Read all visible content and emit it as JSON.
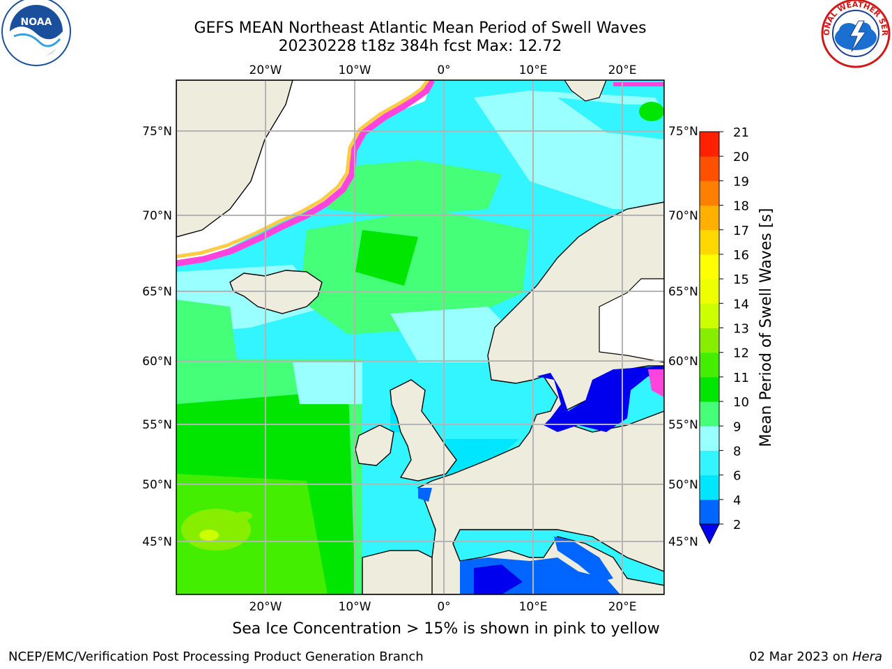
{
  "header": {
    "title_line1": "GEFS MEAN Northeast Atlantic Mean Period of Swell Waves",
    "title_line2": "20230228 t18z 384h fcst   Max: 12.72"
  },
  "logos": {
    "left": {
      "icon": "noaa-logo-icon",
      "text": "NOAA"
    },
    "right": {
      "icon": "national-weather-service-logo-icon",
      "text": "NATIONAL WEATHER SERVICE"
    }
  },
  "map": {
    "projection": "lat-lon",
    "lon_ticks_top": [
      "20°W",
      "10°W",
      "0°",
      "10°E",
      "20°E"
    ],
    "lon_ticks_bottom": [
      "20°W",
      "10°W",
      "0°",
      "10°E",
      "20°E"
    ],
    "lat_ticks_left": [
      "75°N",
      "70°N",
      "65°N",
      "60°N",
      "55°N",
      "50°N",
      "45°N"
    ],
    "lat_ticks_right": [
      "75°N",
      "70°N",
      "65°N",
      "60°N",
      "55°N",
      "50°N",
      "45°N"
    ],
    "land_color": "#eeecdc",
    "grid_color": "#b4b4b4"
  },
  "colorbar": {
    "label": "Mean Period of Swell Waves [s]",
    "ticks": [
      "2",
      "4",
      "6",
      "8",
      "9",
      "10",
      "11",
      "12",
      "13",
      "14",
      "15",
      "16",
      "17",
      "18",
      "19",
      "20",
      "21"
    ],
    "colors": [
      "#0066ff",
      "#00e6ff",
      "#33f5ff",
      "#99ffff",
      "#44ff77",
      "#00e600",
      "#44ee00",
      "#88ee00",
      "#ccff00",
      "#eeff00",
      "#ffff00",
      "#ffd800",
      "#ffb000",
      "#ff8000",
      "#ff5000",
      "#ff2000"
    ],
    "extend_min_color": "#0000ee"
  },
  "footer": {
    "ice_note": "Sea Ice Concentration > 15% is shown in pink to yellow",
    "left": "NCEP/EMC/Verification Post Processing Product Generation Branch",
    "date": "02 Mar 2023 on ",
    "machine": "Hera"
  }
}
